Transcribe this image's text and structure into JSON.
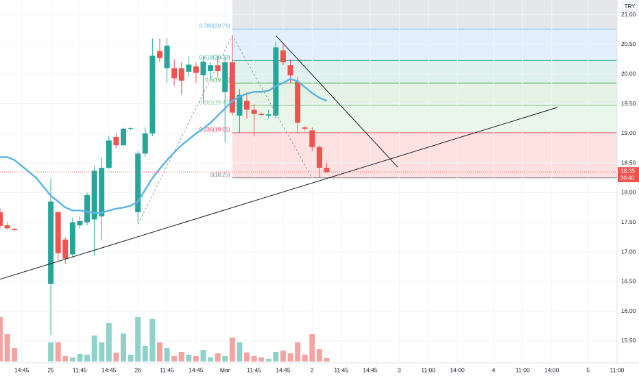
{
  "chart_data": {
    "type": "candlestick",
    "currency": "TRY",
    "xlim": [
      0,
      85
    ],
    "ylim": [
      15.13,
      21.25
    ],
    "grid": true,
    "up_color": "#26a69a",
    "down_color": "#ef5350",
    "volume_up_color": "#8fd2c9",
    "volume_down_color": "#f4a3a3",
    "xticks": [
      {
        "value": 3,
        "label": "14:45"
      },
      {
        "value": 7,
        "label": "25"
      },
      {
        "value": 11,
        "label": "11:45"
      },
      {
        "value": 15,
        "label": "14:45"
      },
      {
        "value": 19,
        "label": "26"
      },
      {
        "value": 23,
        "label": "11:45"
      },
      {
        "value": 27,
        "label": "14:45"
      },
      {
        "value": 31,
        "label": "Mar"
      },
      {
        "value": 35,
        "label": "11:45"
      },
      {
        "value": 39,
        "label": "14:45"
      },
      {
        "value": 43,
        "label": "2"
      },
      {
        "value": 47,
        "label": "11:45"
      },
      {
        "value": 51,
        "label": "14:45"
      },
      {
        "value": 55,
        "label": "3"
      },
      {
        "value": 59,
        "label": "11:00"
      },
      {
        "value": 63,
        "label": "14:00"
      },
      {
        "value": 68,
        "label": "4"
      },
      {
        "value": 72,
        "label": "11:00"
      },
      {
        "value": 76,
        "label": "14:00"
      },
      {
        "value": 81,
        "label": "5"
      },
      {
        "value": 85,
        "label": "11:00"
      }
    ],
    "yticks": [
      {
        "value": 21,
        "label": "21.00"
      },
      {
        "value": 20.5,
        "label": "20.50"
      },
      {
        "value": 20,
        "label": "20.00"
      },
      {
        "value": 19.5,
        "label": "19.50"
      },
      {
        "value": 19,
        "label": "19.00"
      },
      {
        "value": 18.5,
        "label": "18.50"
      },
      {
        "value": 18,
        "label": "18.00"
      },
      {
        "value": 17.5,
        "label": "17.50"
      },
      {
        "value": 17,
        "label": "17.00"
      },
      {
        "value": 16.5,
        "label": "16.50"
      },
      {
        "value": 16,
        "label": "16.00"
      },
      {
        "value": 15.5,
        "label": "15.50"
      }
    ],
    "open": [
      17.67,
      17.45,
      17.39,
      null,
      null,
      null,
      null,
      16.46,
      17.67,
      17.21,
      16.96,
      17.45,
      17.5,
      17.55,
      17.6,
      18.42,
      18.94,
      18.8,
      19.08,
      17.67,
      18.66,
      19.0,
      20.39,
      20.1,
      20.1,
      20.1,
      20.04,
      20.13,
      19.98,
      20.05,
      20.15,
      19.7,
      20.2,
      19.3,
      19.55,
      19.4,
      19.33,
      19.3,
      19.3,
      20.4,
      20.15,
      19.87,
      19.1,
      19.05,
      18.77,
      18.42
    ],
    "high": [
      17.73,
      17.5,
      17.4,
      null,
      null,
      null,
      null,
      18.23,
      17.7,
      17.25,
      17.58,
      17.6,
      18.0,
      18.45,
      18.6,
      18.95,
      19.0,
      19.1,
      19.1,
      18.7,
      19.1,
      20.6,
      20.6,
      20.6,
      20.25,
      20.2,
      20.3,
      20.2,
      20.3,
      20.2,
      20.3,
      20.3,
      20.65,
      19.75,
      19.7,
      19.5,
      19.35,
      19.4,
      20.55,
      20.5,
      20.25,
      19.95,
      19.12,
      19.1,
      18.8,
      18.5
    ],
    "low": [
      17.4,
      17.38,
      17.36,
      null,
      null,
      null,
      null,
      15.6,
      16.85,
      16.8,
      16.9,
      17.4,
      17.45,
      16.95,
      17.2,
      18.4,
      18.75,
      18.78,
      19.05,
      17.5,
      18.6,
      18.95,
      20.2,
      19.85,
      19.8,
      19.65,
      19.95,
      19.85,
      19.5,
      19.9,
      19.95,
      18.85,
      19.3,
      19.0,
      19.25,
      18.95,
      19.3,
      19.25,
      19.25,
      20.15,
      19.85,
      19.0,
      19.05,
      18.7,
      18.25,
      18.33
    ],
    "close": [
      17.44,
      17.4,
      17.37,
      null,
      null,
      null,
      null,
      17.85,
      16.98,
      16.89,
      17.5,
      17.52,
      17.96,
      18.37,
      18.42,
      18.88,
      18.8,
      19.08,
      19.09,
      18.66,
      19.0,
      20.31,
      20.27,
      20.48,
      19.93,
      19.89,
      20.16,
      20.02,
      20.21,
      20.15,
      20.05,
      20.2,
      19.35,
      19.65,
      19.4,
      19.33,
      19.31,
      19.32,
      20.45,
      20.2,
      19.98,
      19.18,
      19.08,
      18.77,
      18.42,
      18.35
    ],
    "volume_ylim": [
      0,
      100
    ],
    "volume": [
      65,
      40,
      20,
      null,
      null,
      null,
      null,
      28,
      28,
      8,
      6,
      11,
      10,
      38,
      28,
      56,
      13,
      41,
      10,
      65,
      23,
      62,
      28,
      20,
      8,
      14,
      10,
      8,
      17,
      6,
      12,
      8,
      35,
      28,
      13,
      8,
      6,
      4,
      14,
      16,
      12,
      28,
      10,
      40,
      18,
      5
    ],
    "ma": {
      "color": "#5db4e3",
      "values": [
        18.6,
        18.6,
        18.55,
        18.45,
        18.35,
        18.25,
        18.1,
        17.95,
        17.85,
        17.75,
        17.7,
        17.7,
        17.68,
        17.66,
        17.66,
        17.7,
        17.73,
        17.75,
        17.78,
        17.85,
        18.05,
        18.25,
        18.4,
        18.55,
        18.68,
        18.8,
        18.9,
        19.0,
        19.08,
        19.18,
        19.3,
        19.42,
        19.55,
        19.62,
        19.67,
        19.7,
        19.7,
        19.72,
        19.8,
        19.85,
        19.92,
        19.88,
        19.78,
        19.68,
        19.6,
        19.55
      ]
    },
    "fib": {
      "x_start": 32,
      "levels": [
        {
          "value": 20.76,
          "label": "0.786(20.76)",
          "color": "#64b5f6",
          "fill": "#e3f0fc"
        },
        {
          "value": 20.23,
          "label": "0.618(20.23)",
          "color": "#26a69a",
          "fill": "#dff1ee"
        },
        {
          "value": 19.85,
          "label": "0.5(19.85)",
          "color": "#4caf50",
          "fill": "#e4f3e5"
        },
        {
          "value": 19.47,
          "label": "0.382(19.47)",
          "color": "#81c784",
          "fill": "#e9f6ea"
        },
        {
          "value": 19.01,
          "label": "0.236(19.01)",
          "color": "#f23645",
          "fill": "#fde0e0"
        },
        {
          "value": 18.25,
          "label": "0(18.25)",
          "color": "#787b86",
          "fill": "#fde0e0"
        }
      ]
    },
    "fib_swing": {
      "x": [
        19,
        32,
        43
      ],
      "y": [
        17.47,
        20.65,
        18.25
      ]
    },
    "trendlines": [
      {
        "x": [
          0,
          76.8
        ],
        "y": [
          16.54,
          19.44
        ]
      },
      {
        "x": [
          38,
          54.8
        ],
        "y": [
          20.65,
          18.43
        ]
      }
    ],
    "current_price": {
      "value": 18.35,
      "label": "18.35",
      "countdown": "30:40"
    }
  }
}
